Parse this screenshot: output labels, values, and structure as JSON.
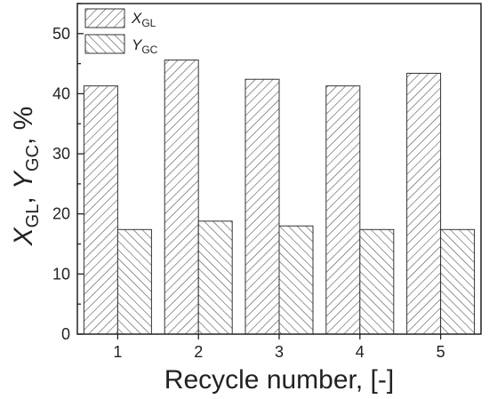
{
  "chart_data": {
    "type": "bar",
    "categories": [
      "1",
      "2",
      "3",
      "4",
      "5"
    ],
    "series": [
      {
        "name": "X_GL",
        "label_main": "X",
        "label_sub": "GL",
        "values": [
          41.3,
          45.6,
          42.4,
          41.3,
          43.4
        ]
      },
      {
        "name": "Y_GC",
        "label_main": "Y",
        "label_sub": "GC",
        "values": [
          17.4,
          18.8,
          18.0,
          17.4,
          17.4
        ]
      }
    ],
    "xlabel": "Recycle number, [-]",
    "ylabel": {
      "x_main": "X",
      "x_sub": "GL",
      "sep": ", ",
      "y_main": "Y",
      "y_sub": "GC",
      "unit": ", %"
    },
    "ylim": [
      0,
      55
    ],
    "yticks": [
      0,
      10,
      20,
      30,
      40,
      50
    ],
    "grid": false,
    "legend_position": "top-left",
    "hatch": [
      "diagonal-forward",
      "diagonal-backward"
    ],
    "colors": {
      "bar_fill": "#ffffff",
      "hatch_stroke": "#444444",
      "axis": "#222222"
    }
  }
}
